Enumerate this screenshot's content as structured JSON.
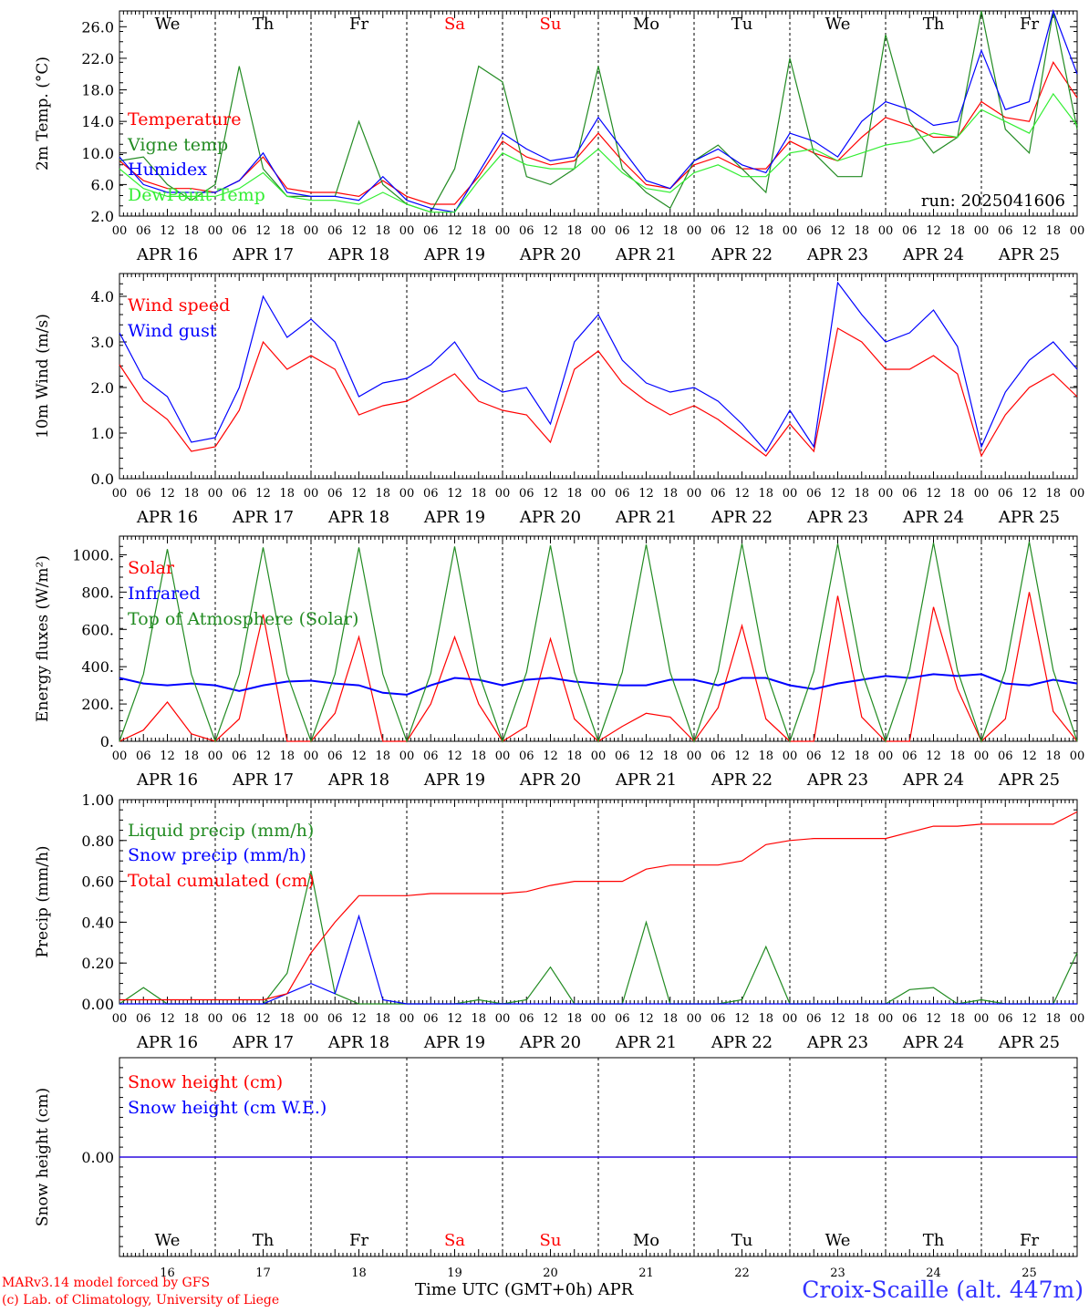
{
  "footer": {
    "model_line": "MARv3.14 model forced by GFS",
    "lab_line": "(c) Lab. of Climatology, University of Liege",
    "time_axis_label": "Time UTC (GMT+0h) APR",
    "station": "Croix-Scaille (alt. 447m)"
  },
  "days": {
    "weekday_labels": [
      "We",
      "Th",
      "Fr",
      "Sa",
      "Su",
      "Mo",
      "Tu",
      "We",
      "Th",
      "Fr"
    ],
    "weekday_colors": [
      "#000000",
      "#000000",
      "#000000",
      "#ff0000",
      "#ff0000",
      "#000000",
      "#000000",
      "#000000",
      "#000000",
      "#000000"
    ],
    "date_labels": [
      "APR 16",
      "APR 17",
      "APR 18",
      "APR 19",
      "APR 20",
      "APR 21",
      "APR 22",
      "APR 23",
      "APR 24",
      "APR 25"
    ],
    "day_numbers": [
      "16",
      "17",
      "18",
      "19",
      "20",
      "21",
      "22",
      "23",
      "24",
      "25"
    ],
    "hour_ticks": [
      "00",
      "06",
      "12",
      "18"
    ]
  },
  "colors": {
    "red": "#ff0000",
    "green": "#228b22",
    "blue": "#0000ff",
    "lightgreen": "#33ee33"
  },
  "chart_data": [
    {
      "type": "line",
      "ylabel": "2m Temp. (°C)",
      "ylim": [
        2,
        28
      ],
      "yticks": [
        "2.0",
        "6.0",
        "10.0",
        "14.0",
        "18.0",
        "22.0",
        "26.0"
      ],
      "annotation": "run: 2025041606",
      "x_hours": [
        0,
        6,
        12,
        18,
        24,
        30,
        36,
        42,
        48,
        54,
        60,
        66,
        72,
        78,
        84,
        90,
        96,
        102,
        108,
        114,
        120,
        126,
        132,
        138,
        144,
        150,
        156,
        162,
        168,
        174,
        180,
        186,
        192,
        198,
        204,
        210,
        216,
        222,
        228,
        234,
        240
      ],
      "series": [
        {
          "name": "Temperature",
          "color": "red",
          "values": [
            9,
            6.5,
            5.5,
            5.5,
            5,
            6.5,
            9.5,
            5.5,
            5,
            5,
            4.5,
            6.5,
            4.5,
            3.5,
            3.5,
            7,
            11.5,
            9.5,
            8.5,
            9,
            12.5,
            9,
            6,
            5.5,
            8.5,
            9.5,
            8,
            8,
            11.5,
            10,
            9,
            12,
            14.5,
            13.5,
            12,
            12,
            16.5,
            14.5,
            14,
            21.5,
            17
          ]
        },
        {
          "name": "Vigne temp",
          "color": "green",
          "values": [
            9,
            9.5,
            6,
            4,
            6,
            21,
            8,
            4.5,
            4.5,
            4.5,
            14,
            6,
            3.5,
            2.5,
            8,
            21,
            19,
            7,
            6,
            8,
            21,
            8,
            5,
            3,
            9,
            11,
            8,
            5,
            22,
            10,
            7,
            7,
            25,
            14,
            10,
            12,
            28,
            13,
            10,
            28,
            13
          ]
        },
        {
          "name": "Humidex",
          "color": "blue",
          "values": [
            9.5,
            6,
            5,
            5,
            5,
            6.5,
            10,
            5,
            4.5,
            4.5,
            4,
            7,
            4,
            3,
            2.5,
            7.5,
            12.5,
            10.5,
            9,
            9.5,
            14.5,
            10.5,
            6.5,
            5.5,
            9,
            10.5,
            8.5,
            7.5,
            12.5,
            11.5,
            9.5,
            14,
            16.5,
            15.5,
            13.5,
            14,
            23,
            15.5,
            16.5,
            28,
            20
          ]
        },
        {
          "name": "DewPoint Temp",
          "color": "lightgreen",
          "values": [
            8,
            5.5,
            4.5,
            4.5,
            4.5,
            5.5,
            7.5,
            4.5,
            4,
            4,
            3.5,
            5,
            3.5,
            2.5,
            2.5,
            6.5,
            10,
            8.5,
            8,
            8,
            10.5,
            7.5,
            5.5,
            5,
            7.5,
            8.5,
            7,
            7,
            10,
            10.5,
            9,
            10,
            11,
            11.5,
            12.5,
            12,
            15.5,
            14,
            12.5,
            17.5,
            13.5
          ]
        }
      ]
    },
    {
      "type": "line",
      "ylabel": "10m Wind (m/s)",
      "ylim": [
        0,
        4.5
      ],
      "yticks": [
        "0.0",
        "1.0",
        "2.0",
        "3.0",
        "4.0"
      ],
      "x_hours": [
        0,
        6,
        12,
        18,
        24,
        30,
        36,
        42,
        48,
        54,
        60,
        66,
        72,
        78,
        84,
        90,
        96,
        102,
        108,
        114,
        120,
        126,
        132,
        138,
        144,
        150,
        156,
        162,
        168,
        174,
        180,
        186,
        192,
        198,
        204,
        210,
        216,
        222,
        228,
        234,
        240
      ],
      "series": [
        {
          "name": "Wind speed",
          "color": "red",
          "values": [
            2.5,
            1.7,
            1.3,
            0.6,
            0.7,
            1.5,
            3.0,
            2.4,
            2.7,
            2.4,
            1.4,
            1.6,
            1.7,
            2.0,
            2.3,
            1.7,
            1.5,
            1.4,
            0.8,
            2.4,
            2.8,
            2.1,
            1.7,
            1.4,
            1.6,
            1.3,
            0.9,
            0.5,
            1.2,
            0.6,
            3.3,
            3.0,
            2.4,
            2.4,
            2.7,
            2.3,
            0.5,
            1.4,
            2.0,
            2.3,
            1.8
          ]
        },
        {
          "name": "Wind gust",
          "color": "blue",
          "values": [
            3.2,
            2.2,
            1.8,
            0.8,
            0.9,
            2.0,
            4.0,
            3.1,
            3.5,
            3.0,
            1.8,
            2.1,
            2.2,
            2.5,
            3.0,
            2.2,
            1.9,
            2.0,
            1.2,
            3.0,
            3.6,
            2.6,
            2.1,
            1.9,
            2.0,
            1.7,
            1.2,
            0.6,
            1.5,
            0.7,
            4.3,
            3.6,
            3.0,
            3.2,
            3.7,
            2.9,
            0.7,
            1.9,
            2.6,
            3.0,
            2.4
          ]
        }
      ]
    },
    {
      "type": "line",
      "ylabel": "Energy fluxes (W/m²)",
      "ylim": [
        0,
        1100
      ],
      "yticks": [
        "0.",
        "200.",
        "400.",
        "600.",
        "800.",
        "1000."
      ],
      "x_hours": [
        0,
        6,
        12,
        18,
        24,
        30,
        36,
        42,
        48,
        54,
        60,
        66,
        72,
        78,
        84,
        90,
        96,
        102,
        108,
        114,
        120,
        126,
        132,
        138,
        144,
        150,
        156,
        162,
        168,
        174,
        180,
        186,
        192,
        198,
        204,
        210,
        216,
        222,
        228,
        234,
        240
      ],
      "series": [
        {
          "name": "Solar",
          "color": "red",
          "values": [
            0,
            60,
            210,
            40,
            0,
            120,
            680,
            0,
            0,
            150,
            560,
            0,
            0,
            200,
            560,
            200,
            0,
            80,
            550,
            120,
            0,
            80,
            150,
            130,
            0,
            180,
            620,
            120,
            0,
            0,
            780,
            130,
            0,
            0,
            720,
            280,
            0,
            120,
            800,
            160,
            0
          ]
        },
        {
          "name": "Infrared",
          "color": "blue",
          "values": [
            340,
            310,
            300,
            310,
            300,
            270,
            300,
            320,
            325,
            310,
            300,
            260,
            250,
            300,
            340,
            330,
            300,
            330,
            340,
            320,
            310,
            300,
            300,
            330,
            330,
            300,
            340,
            340,
            300,
            280,
            310,
            330,
            350,
            340,
            360,
            350,
            360,
            310,
            300,
            330,
            310
          ]
        },
        {
          "name": "Top of Atmosphere (Solar)",
          "color": "green",
          "values": [
            0,
            360,
            1030,
            360,
            0,
            360,
            1040,
            360,
            0,
            360,
            1040,
            360,
            0,
            365,
            1045,
            365,
            0,
            370,
            1050,
            370,
            0,
            370,
            1055,
            370,
            0,
            375,
            1060,
            375,
            0,
            375,
            1060,
            375,
            0,
            380,
            1065,
            380,
            0,
            380,
            1070,
            380,
            0
          ]
        }
      ]
    },
    {
      "type": "line",
      "ylabel": "Precip (mm/h)",
      "ylim": [
        0,
        1.0
      ],
      "yticks": [
        "0.00",
        "0.20",
        "0.40",
        "0.60",
        "0.80",
        "1.00"
      ],
      "x_hours": [
        0,
        6,
        12,
        18,
        24,
        30,
        36,
        42,
        48,
        54,
        60,
        66,
        72,
        78,
        84,
        90,
        96,
        102,
        108,
        114,
        120,
        126,
        132,
        138,
        144,
        150,
        156,
        162,
        168,
        174,
        180,
        186,
        192,
        198,
        204,
        210,
        216,
        222,
        228,
        234,
        240
      ],
      "series": [
        {
          "name": "Liquid precip (mm/h)",
          "color": "green",
          "values": [
            0,
            0.08,
            0,
            0,
            0,
            0,
            0,
            0.15,
            0.65,
            0.05,
            0,
            0,
            0,
            0,
            0,
            0.02,
            0,
            0.02,
            0.18,
            0,
            0,
            0,
            0.4,
            0,
            0,
            0,
            0.02,
            0.28,
            0,
            0,
            0,
            0,
            0,
            0.07,
            0.08,
            0,
            0.02,
            0,
            0,
            0,
            0.25
          ]
        },
        {
          "name": "Snow precip (mm/h)",
          "color": "blue",
          "values": [
            0,
            0,
            0,
            0,
            0,
            0,
            0,
            0.05,
            0.1,
            0.05,
            0.43,
            0.02,
            0,
            0,
            0,
            0,
            0,
            0,
            0,
            0,
            0,
            0,
            0,
            0,
            0,
            0,
            0,
            0,
            0,
            0,
            0,
            0,
            0,
            0,
            0,
            0,
            0,
            0,
            0,
            0,
            0
          ]
        },
        {
          "name": "Total cumulated (cm)",
          "color": "red",
          "values": [
            0.02,
            0.02,
            0.02,
            0.02,
            0.02,
            0.02,
            0.02,
            0.05,
            0.25,
            0.4,
            0.53,
            0.53,
            0.53,
            0.54,
            0.54,
            0.54,
            0.54,
            0.55,
            0.58,
            0.6,
            0.6,
            0.6,
            0.66,
            0.68,
            0.68,
            0.68,
            0.7,
            0.78,
            0.8,
            0.81,
            0.81,
            0.81,
            0.81,
            0.84,
            0.87,
            0.87,
            0.88,
            0.88,
            0.88,
            0.88,
            0.94
          ]
        }
      ]
    },
    {
      "type": "line",
      "ylabel": "Snow height (cm)",
      "ylim": [
        -1,
        1
      ],
      "yticks": [
        "0.00"
      ],
      "x_hours": [
        0,
        240
      ],
      "series": [
        {
          "name": "Snow height (cm)",
          "color": "red",
          "values": [
            0,
            0
          ]
        },
        {
          "name": "Snow height (cm W.E.)",
          "color": "blue",
          "values": [
            0,
            0
          ]
        }
      ]
    }
  ]
}
